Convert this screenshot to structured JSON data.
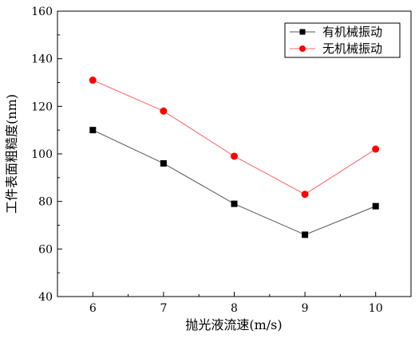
{
  "chart_data": {
    "type": "line",
    "title": "",
    "xlabel": "抛光液流速(m/s)",
    "ylabel": "工件表面粗糙度(nm)",
    "x": [
      6,
      7,
      8,
      9,
      10
    ],
    "xticks": [
      "6",
      "7",
      "8",
      "9",
      "10"
    ],
    "xlim": [
      5.5,
      10.5
    ],
    "yticks": [
      "40",
      "60",
      "80",
      "100",
      "120",
      "140",
      "160"
    ],
    "ylim": [
      40,
      160
    ],
    "grid": false,
    "legend_position": "top-right",
    "series": [
      {
        "name": "有机械振动",
        "values": [
          110,
          96,
          79,
          66,
          78
        ],
        "marker": "square",
        "color": "#000000",
        "line_color": "#555555"
      },
      {
        "name": "无机械振动",
        "values": [
          131,
          118,
          99,
          83,
          102
        ],
        "marker": "circle",
        "color": "#ff0000",
        "line_color": "#ff6060"
      }
    ]
  }
}
